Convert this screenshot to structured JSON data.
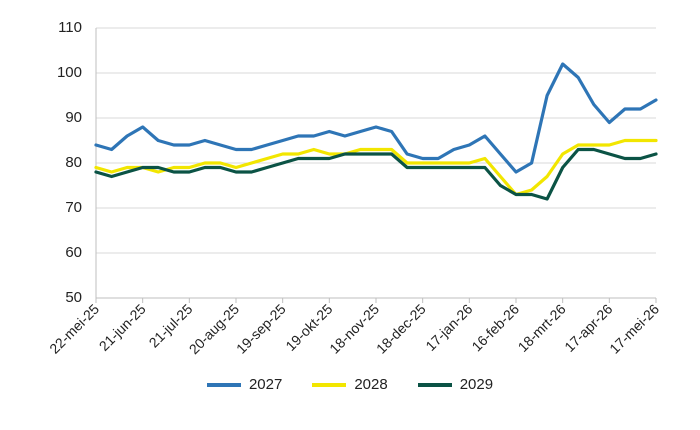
{
  "chart_data": {
    "type": "line",
    "title": "",
    "xlabel": "",
    "ylabel": "",
    "ylim": [
      50,
      110
    ],
    "yticks": [
      50,
      60,
      70,
      80,
      90,
      100,
      110
    ],
    "grid": "horizontal",
    "legend_position": "bottom",
    "x_tick_labels": [
      "22-mei-25",
      "21-jun-25",
      "21-jul-25",
      "20-aug-25",
      "19-sep-25",
      "19-okt-25",
      "18-nov-25",
      "18-dec-25",
      "17-jan-26",
      "16-feb-26",
      "18-mrt-26",
      "17-apr-26",
      "17-mei-26"
    ],
    "x": [
      "22-mei-25",
      "1-jun-25",
      "11-jun-25",
      "21-jun-25",
      "1-jul-25",
      "11-jul-25",
      "21-jul-25",
      "31-jul-25",
      "10-aug-25",
      "20-aug-25",
      "30-aug-25",
      "9-sep-25",
      "19-sep-25",
      "29-sep-25",
      "9-okt-25",
      "19-okt-25",
      "29-okt-25",
      "8-nov-25",
      "18-nov-25",
      "28-nov-25",
      "8-dec-25",
      "18-dec-25",
      "28-dec-25",
      "7-jan-26",
      "17-jan-26",
      "27-jan-26",
      "6-feb-26",
      "16-feb-26",
      "26-feb-26",
      "8-mrt-26",
      "18-mrt-26",
      "28-mrt-26",
      "7-apr-26",
      "17-apr-26",
      "27-apr-26",
      "7-mei-26",
      "17-mei-26"
    ],
    "series": [
      {
        "name": "2027",
        "color": "#2e75b6",
        "values": [
          84,
          83,
          86,
          88,
          85,
          84,
          84,
          85,
          84,
          83,
          83,
          84,
          85,
          86,
          86,
          87,
          86,
          87,
          88,
          87,
          82,
          81,
          81,
          83,
          84,
          86,
          82,
          78,
          80,
          95,
          102,
          99,
          93,
          89,
          92,
          92,
          94
        ]
      },
      {
        "name": "2028",
        "color": "#f2e600",
        "values": [
          79,
          78,
          79,
          79,
          78,
          79,
          79,
          80,
          80,
          79,
          80,
          81,
          82,
          82,
          83,
          82,
          82,
          83,
          83,
          83,
          80,
          80,
          80,
          80,
          80,
          81,
          77,
          73,
          74,
          77,
          82,
          84,
          84,
          84,
          85,
          85,
          85
        ]
      },
      {
        "name": "2029",
        "color": "#0b5345",
        "values": [
          78,
          77,
          78,
          79,
          79,
          78,
          78,
          79,
          79,
          78,
          78,
          79,
          80,
          81,
          81,
          81,
          82,
          82,
          82,
          82,
          79,
          79,
          79,
          79,
          79,
          79,
          75,
          73,
          73,
          72,
          79,
          83,
          83,
          82,
          81,
          81,
          82
        ]
      }
    ]
  }
}
